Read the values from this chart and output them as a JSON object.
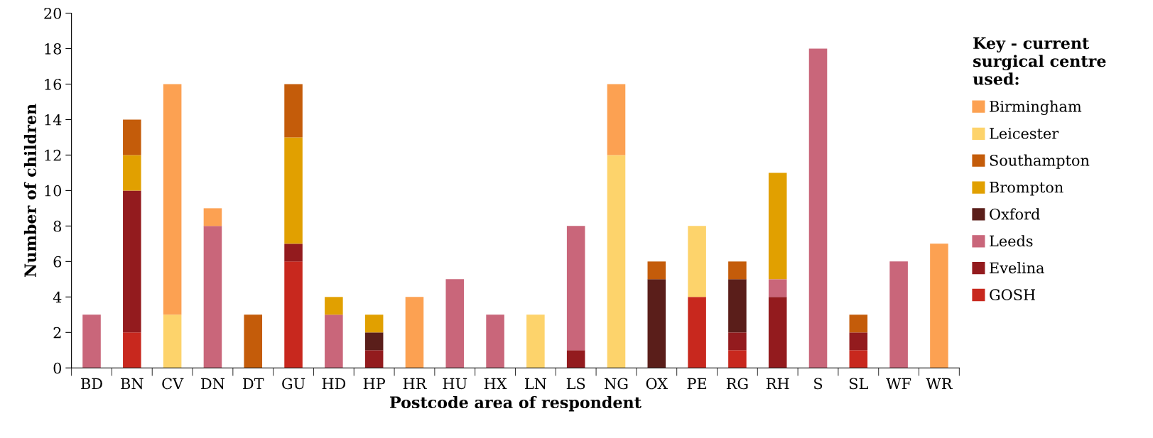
{
  "chart_data": {
    "type": "bar",
    "stacked": true,
    "xlabel": "Postcode area of respondent",
    "ylabel": "Number of children",
    "legend_title": "Key - current\nsurgical centre\nused:",
    "legend": "right",
    "grid": false,
    "categories": [
      "BD",
      "BN",
      "CV",
      "DN",
      "DT",
      "GU",
      "HD",
      "HP",
      "HR",
      "HU",
      "HX",
      "LN",
      "LS",
      "NG",
      "OX",
      "PE",
      "RG",
      "RH",
      "S",
      "SL",
      "WF",
      "WR"
    ],
    "ylim": [
      0,
      20
    ],
    "yticks": [
      0,
      2,
      4,
      6,
      8,
      10,
      12,
      14,
      16,
      18,
      20
    ],
    "series": [
      {
        "name": "GOSH",
        "color": "#c8281e",
        "values": [
          0,
          2,
          0,
          0,
          0,
          6,
          0,
          0,
          0,
          0,
          0,
          0,
          0,
          0,
          0,
          4,
          1,
          0,
          0,
          1,
          0,
          0
        ]
      },
      {
        "name": "Evelina",
        "color": "#931b1e",
        "values": [
          0,
          8,
          0,
          0,
          0,
          1,
          0,
          1,
          0,
          0,
          0,
          0,
          1,
          0,
          0,
          0,
          1,
          4,
          0,
          1,
          0,
          0
        ]
      },
      {
        "name": "Leeds",
        "color": "#c9667a",
        "values": [
          3,
          0,
          0,
          8,
          0,
          0,
          3,
          0,
          0,
          5,
          3,
          0,
          7,
          0,
          0,
          0,
          0,
          1,
          18,
          0,
          6,
          0
        ]
      },
      {
        "name": "Oxford",
        "color": "#5a1e1a",
        "values": [
          0,
          0,
          0,
          0,
          0,
          0,
          0,
          1,
          0,
          0,
          0,
          0,
          0,
          0,
          5,
          0,
          3,
          0,
          0,
          0,
          0,
          0
        ]
      },
      {
        "name": "Brompton",
        "color": "#e1a000",
        "values": [
          0,
          2,
          0,
          0,
          0,
          6,
          1,
          1,
          0,
          0,
          0,
          0,
          0,
          0,
          0,
          0,
          0,
          6,
          0,
          0,
          0,
          0
        ]
      },
      {
        "name": "Southampton",
        "color": "#c45c0a",
        "values": [
          0,
          2,
          0,
          0,
          3,
          3,
          0,
          0,
          0,
          0,
          0,
          0,
          0,
          0,
          1,
          0,
          1,
          0,
          0,
          1,
          0,
          0
        ]
      },
      {
        "name": "Leicester",
        "color": "#fdd36b",
        "values": [
          0,
          0,
          3,
          0,
          0,
          0,
          0,
          0,
          0,
          0,
          0,
          3,
          0,
          12,
          0,
          4,
          0,
          0,
          0,
          0,
          0,
          0
        ]
      },
      {
        "name": "Birmingham",
        "color": "#fca152",
        "values": [
          0,
          0,
          13,
          1,
          0,
          0,
          0,
          0,
          4,
          0,
          0,
          0,
          0,
          4,
          0,
          0,
          0,
          0,
          0,
          0,
          0,
          7
        ]
      }
    ]
  }
}
